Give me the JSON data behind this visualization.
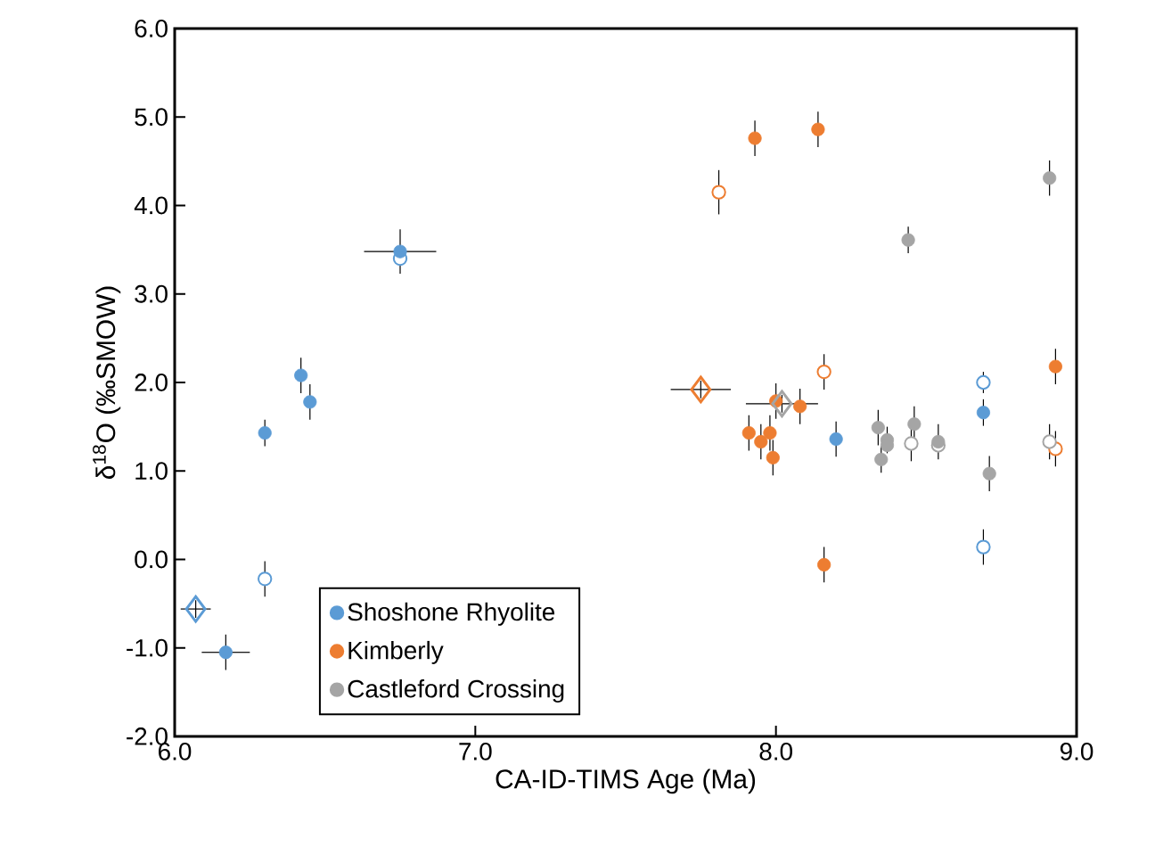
{
  "chart_data": {
    "type": "scatter",
    "xlabel": "CA-ID-TIMS Age (Ma)",
    "ylabel": "δ$^{18}$O (‰SMOW)",
    "xlim": [
      6.0,
      9.0
    ],
    "xticks": [
      {
        "value": 6,
        "label": "6.0"
      },
      {
        "value": 7,
        "label": "7.0"
      },
      {
        "value": 8,
        "label": "8.0"
      },
      {
        "value": 9,
        "label": "9.0"
      }
    ],
    "ylim": [
      -2.0,
      6.0
    ],
    "yticks": [
      {
        "value": -2,
        "label": "-2.0"
      },
      {
        "value": -1,
        "label": "-1.0"
      },
      {
        "value": 0,
        "label": "0.0"
      },
      {
        "value": 1,
        "label": "1.0"
      },
      {
        "value": 2,
        "label": "2.0"
      },
      {
        "value": 3,
        "label": "3.0"
      },
      {
        "value": 4,
        "label": "4.0"
      },
      {
        "value": 5,
        "label": "5.0"
      },
      {
        "value": 6,
        "label": "6.0"
      }
    ],
    "grid": false,
    "legend": "bottom left",
    "series": [
      {
        "color": "#5b9bd5",
        "marker": "circle",
        "x": [
          6.75,
          6.3,
          8.69,
          8.69
        ],
        "values": [
          3.4,
          -0.22,
          2.0,
          0.14
        ],
        "errors": [
          null,
          0.2,
          0.12,
          0.2
        ]
      },
      {
        "color": "#ed7d31",
        "marker": "circle",
        "x": [
          7.81,
          8.16,
          8.93
        ],
        "values": [
          4.15,
          2.12,
          1.25
        ],
        "errors": [
          0.25,
          0.2,
          0.2
        ]
      },
      {
        "color": "#a5a5a5",
        "marker": "circle",
        "x": [
          8.45,
          8.54,
          8.91
        ],
        "values": [
          1.31,
          1.29,
          1.33
        ],
        "errors": [
          0.2,
          null,
          0.2
        ]
      },
      {
        "name": "Shoshone Rhyolite",
        "color": "#5b9bd5",
        "marker": "circle",
        "x": [
          6.75,
          6.42,
          6.45,
          6.3,
          6.17,
          8.2,
          8.69
        ],
        "values": [
          3.48,
          2.08,
          1.78,
          1.43,
          -1.05,
          1.36,
          1.66
        ],
        "errors": [
          0.25,
          0.2,
          0.2,
          0.15,
          0.2,
          0.2,
          0.15
        ],
        "xerrors": [
          0.12,
          null,
          null,
          null,
          0.08,
          null,
          null
        ]
      },
      {
        "name": "Kimberly",
        "color": "#ed7d31",
        "marker": "circle",
        "x": [
          7.93,
          8.14,
          8.93,
          8.16,
          7.91,
          7.98,
          7.95,
          7.99,
          8.0,
          8.08
        ],
        "values": [
          4.76,
          4.86,
          2.18,
          -0.06,
          1.43,
          1.43,
          1.33,
          1.15,
          1.79,
          1.73
        ],
        "errors": [
          0.2,
          0.2,
          0.2,
          0.2,
          0.2,
          0.2,
          0.2,
          0.2,
          0.2,
          0.2
        ]
      },
      {
        "name": "Castleford Crossing",
        "color": "#a5a5a5",
        "marker": "circle",
        "x": [
          8.44,
          8.91,
          8.34,
          8.37,
          8.37,
          8.35,
          8.46,
          8.54,
          8.71
        ],
        "values": [
          3.61,
          4.31,
          1.49,
          1.35,
          1.29,
          1.13,
          1.53,
          1.33,
          0.97
        ],
        "errors": [
          0.15,
          0.2,
          0.2,
          0.15,
          null,
          0.15,
          0.2,
          0.2,
          0.2
        ]
      },
      {
        "color": "#5b9bd5",
        "marker": "diamond",
        "x": [
          6.07
        ],
        "values": [
          -0.56
        ],
        "errors": [
          0.1
        ],
        "xerrors": [
          0.05
        ]
      },
      {
        "color": "#ed7d31",
        "marker": "diamond",
        "x": [
          7.75
        ],
        "values": [
          1.92
        ],
        "errors": [
          0.1
        ],
        "xerrors": [
          0.1
        ]
      },
      {
        "color": "#a5a5a5",
        "marker": "diamond",
        "x": [
          8.02
        ],
        "values": [
          1.76
        ],
        "errors": [
          0.1
        ],
        "xerrors": [
          0.12
        ]
      }
    ]
  }
}
